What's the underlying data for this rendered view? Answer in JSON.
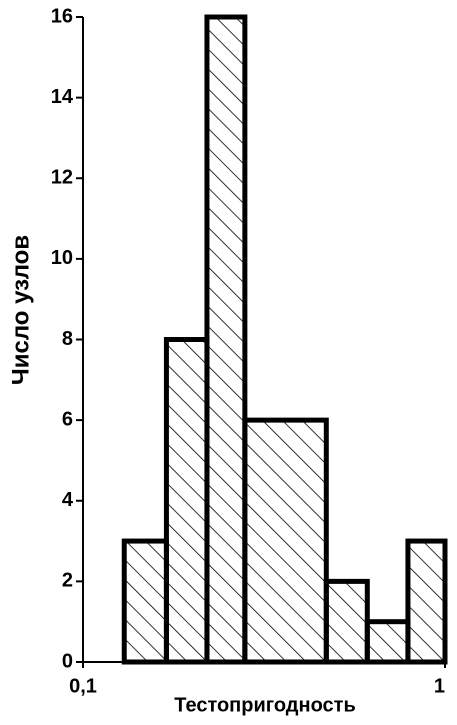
{
  "chart_data": {
    "type": "histogram",
    "xlabel": "Тестопригодность",
    "ylabel": "Число узлов",
    "bins": [
      0.13,
      0.17,
      0.22,
      0.28,
      0.47,
      0.61,
      0.79,
      1
    ],
    "values": [
      3,
      8,
      16,
      6,
      2,
      1,
      3
    ],
    "color": "#000000",
    "hatch": true,
    "xscale": "log",
    "xlim": [
      0.1,
      1
    ],
    "xticks": [
      {
        "value": 0.1,
        "label": "0,1"
      },
      1
    ],
    "ylim": [
      0,
      16
    ],
    "yticks": [
      0,
      2,
      4,
      6,
      8,
      10,
      12,
      14,
      16
    ],
    "grid": false
  }
}
